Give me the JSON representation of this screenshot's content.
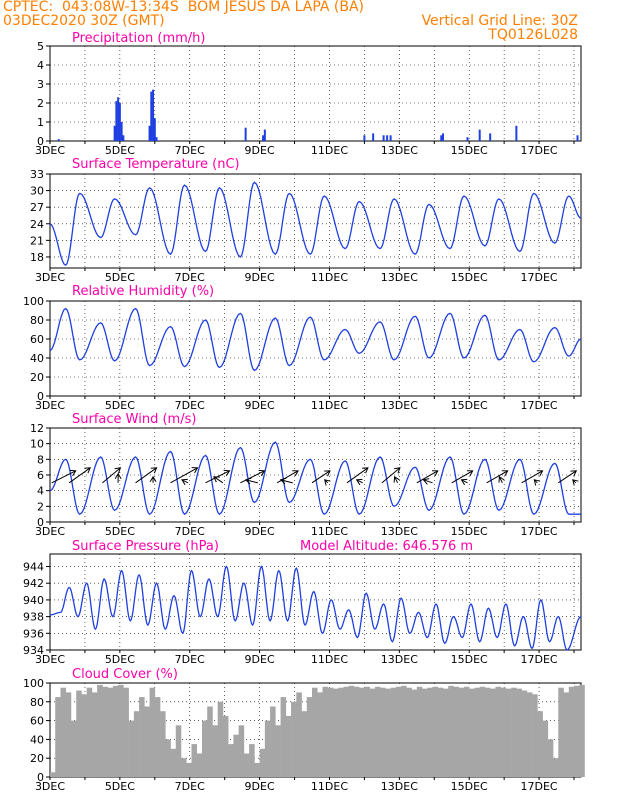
{
  "header": {
    "line1_left": "CPTEC:  043:08W-13:34S  BOM JESUS DA LAPA (BA)",
    "line2_left": "03DEC2020 30Z (GMT)",
    "line2_right": "Vertical Grid Line: 30Z",
    "line3_right": "TQ0126L028"
  },
  "colors": {
    "header": "#ff7f00",
    "panel_title": "#ff00aa",
    "series": "#1f3fe0",
    "arrow": "#000000",
    "cloud": "#a6a6a6"
  },
  "x_axis": {
    "ticks": [
      "3DEC",
      "5DEC",
      "7DEC",
      "9DEC",
      "11DEC",
      "13DEC",
      "15DEC",
      "17DEC"
    ],
    "tick_days": [
      3,
      5,
      7,
      9,
      11,
      13,
      15,
      17
    ],
    "range_days": [
      3,
      18.2
    ]
  },
  "chart_data": [
    {
      "id": "precip",
      "type": "bar",
      "title": "Precipitation (mm/h)",
      "ylim": [
        0,
        5
      ],
      "yticks": [
        "0",
        "1",
        "2",
        "3",
        "4",
        "5"
      ],
      "x_days": [
        3.25,
        4.85,
        4.9,
        4.95,
        5.0,
        5.05,
        5.1,
        5.85,
        5.9,
        5.95,
        6.0,
        6.05,
        8.6,
        9.1,
        9.15,
        12.0,
        12.25,
        12.55,
        12.65,
        12.75,
        14.2,
        14.25,
        14.95,
        15.3,
        15.6,
        16.35,
        18.1
      ],
      "values": [
        0.1,
        0.8,
        2.1,
        2.3,
        2.0,
        1.0,
        0.3,
        0.8,
        2.6,
        2.7,
        1.2,
        0.2,
        0.7,
        0.3,
        0.6,
        0.3,
        0.4,
        0.3,
        0.3,
        0.3,
        0.3,
        0.4,
        0.2,
        0.6,
        0.4,
        0.8,
        0.3
      ]
    },
    {
      "id": "temp",
      "type": "line",
      "title": "Surface Temperature (nC)",
      "ylim": [
        16,
        33
      ],
      "yticks": [
        "18",
        "21",
        "24",
        "27",
        "30",
        "33"
      ],
      "days_min": [
        3.45,
        4.45,
        5.45,
        6.45,
        7.45,
        8.45,
        9.45,
        10.45,
        11.45,
        12.45,
        13.45,
        14.45,
        15.45,
        16.45,
        17.45
      ],
      "min_values": [
        16.5,
        21.5,
        22.0,
        18.5,
        19.0,
        18.0,
        18.5,
        18.5,
        19.5,
        19.5,
        18.5,
        19.5,
        20.0,
        19.0,
        20.5
      ],
      "days_max": [
        3.85,
        4.85,
        5.85,
        6.85,
        7.85,
        8.85,
        9.85,
        10.85,
        11.85,
        12.85,
        13.85,
        14.85,
        15.85,
        16.85,
        17.85
      ],
      "max_values": [
        29.5,
        28.5,
        30.5,
        31.0,
        30.5,
        31.5,
        29.5,
        29.0,
        28.0,
        28.5,
        27.5,
        29.0,
        28.5,
        29.5,
        29.0
      ],
      "start": 24.0,
      "end": 25.0
    },
    {
      "id": "rh",
      "type": "line",
      "title": "Relative Humidity (%)",
      "ylim": [
        0,
        100
      ],
      "yticks": [
        "0",
        "20",
        "40",
        "60",
        "80",
        "100"
      ],
      "days_max": [
        3.45,
        4.45,
        5.45,
        6.45,
        7.45,
        8.45,
        9.45,
        10.45,
        11.45,
        12.45,
        13.45,
        14.45,
        15.45,
        16.45,
        17.45
      ],
      "max_values": [
        92,
        77,
        92,
        73,
        80,
        87,
        82,
        83,
        70,
        78,
        84,
        87,
        85,
        70,
        72
      ],
      "days_min": [
        3.85,
        4.85,
        5.85,
        6.85,
        7.85,
        8.85,
        9.85,
        10.85,
        11.85,
        12.85,
        13.85,
        14.85,
        15.85,
        16.85,
        17.85
      ],
      "min_values": [
        38,
        37,
        32,
        31,
        30,
        27,
        32,
        38,
        45,
        38,
        40,
        40,
        38,
        36,
        42
      ],
      "start": 48,
      "end": 60
    },
    {
      "id": "wind",
      "type": "line",
      "title": "Surface Wind (m/s)",
      "ylim": [
        0,
        12
      ],
      "yticks": [
        "0",
        "2",
        "4",
        "6",
        "8",
        "10",
        "12"
      ],
      "days_max": [
        3.45,
        4.45,
        5.45,
        6.45,
        7.45,
        8.45,
        9.45,
        10.45,
        11.45,
        12.45,
        13.45,
        14.45,
        15.45,
        16.45,
        17.45
      ],
      "max_values": [
        8.0,
        8.3,
        8.3,
        9.0,
        8.5,
        9.5,
        10.2,
        8.0,
        7.8,
        8.3,
        7.0,
        8.3,
        8.0,
        8.0,
        7.5
      ],
      "days_min": [
        3.85,
        4.85,
        5.85,
        6.85,
        7.85,
        8.85,
        9.85,
        10.85,
        11.85,
        12.85,
        13.85,
        14.85,
        15.85,
        16.85,
        17.85
      ],
      "min_values": [
        1.0,
        1.5,
        1.0,
        1.0,
        1.0,
        2.5,
        2.5,
        1.0,
        1.0,
        2.0,
        1.5,
        1.0,
        1.5,
        1.0,
        1.0
      ],
      "start": 4.0,
      "end": 1.0,
      "vectors": [
        {
          "day": 3.05,
          "u": 8,
          "v": 4
        },
        {
          "day": 3.55,
          "u": 7,
          "v": 5
        },
        {
          "day": 4.5,
          "u": 6,
          "v": 5
        },
        {
          "day": 4.95,
          "u": 0,
          "v": 3
        },
        {
          "day": 5.45,
          "u": 7,
          "v": 5
        },
        {
          "day": 5.95,
          "u": 0,
          "v": 2
        },
        {
          "day": 6.45,
          "u": 9,
          "v": 5
        },
        {
          "day": 6.95,
          "u": -2,
          "v": 1
        },
        {
          "day": 7.45,
          "u": 8,
          "v": 4
        },
        {
          "day": 7.95,
          "u": -3,
          "v": 2
        },
        {
          "day": 8.45,
          "u": 8,
          "v": 4
        },
        {
          "day": 8.95,
          "u": -4,
          "v": 1
        },
        {
          "day": 9.5,
          "u": 7,
          "v": 4
        },
        {
          "day": 9.95,
          "u": -4,
          "v": 1
        },
        {
          "day": 10.5,
          "u": 6,
          "v": 4
        },
        {
          "day": 10.95,
          "u": -1,
          "v": 1
        },
        {
          "day": 11.5,
          "u": 7,
          "v": 5
        },
        {
          "day": 11.95,
          "u": -2,
          "v": 1
        },
        {
          "day": 12.5,
          "u": 6,
          "v": 5
        },
        {
          "day": 12.95,
          "u": -1,
          "v": 2
        },
        {
          "day": 13.5,
          "u": 7,
          "v": 4
        },
        {
          "day": 13.95,
          "u": -3,
          "v": 1
        },
        {
          "day": 14.5,
          "u": 7,
          "v": 4
        },
        {
          "day": 14.95,
          "u": -2,
          "v": 1
        },
        {
          "day": 15.5,
          "u": 7,
          "v": 4
        },
        {
          "day": 15.95,
          "u": -1,
          "v": 2
        },
        {
          "day": 16.5,
          "u": 7,
          "v": 4
        },
        {
          "day": 16.95,
          "u": -1,
          "v": 1
        },
        {
          "day": 17.55,
          "u": 6,
          "v": 4
        },
        {
          "day": 18.05,
          "u": -1,
          "v": 1
        }
      ]
    },
    {
      "id": "pres",
      "type": "line",
      "title": "Surface Pressure (hPa)",
      "subtitle": "Model Altitude: 646.576 m",
      "ylim": [
        934,
        945.5
      ],
      "yticks": [
        "934",
        "936",
        "938",
        "940",
        "942",
        "944"
      ],
      "days_max": [
        3.55,
        4.05,
        4.55,
        5.05,
        5.55,
        6.05,
        6.55,
        7.05,
        7.55,
        8.05,
        8.55,
        9.05,
        9.55,
        10.05,
        10.55,
        11.05,
        11.55,
        12.05,
        12.55,
        13.05,
        13.55,
        14.05,
        14.55,
        15.05,
        15.55,
        16.05,
        16.55,
        17.05,
        17.55
      ],
      "max_values": [
        941.5,
        942.0,
        942.5,
        943.5,
        943.0,
        942.0,
        940.5,
        943.5,
        942.5,
        944.0,
        942.0,
        944.0,
        943.5,
        943.8,
        941.0,
        940.0,
        938.8,
        940.8,
        939.5,
        940.2,
        938.5,
        939.5,
        938.0,
        939.5,
        939.0,
        939.5,
        938.0,
        940.0,
        938.0
      ],
      "days_min": [
        3.3,
        3.8,
        4.3,
        4.8,
        5.3,
        5.8,
        6.3,
        6.8,
        7.3,
        7.8,
        8.3,
        8.8,
        9.3,
        9.8,
        10.3,
        10.8,
        11.3,
        11.8,
        12.3,
        12.8,
        13.3,
        13.8,
        14.3,
        14.8,
        15.3,
        15.8,
        16.3,
        16.8,
        17.3,
        17.8
      ],
      "min_values": [
        938.5,
        938.0,
        936.5,
        938.0,
        937.5,
        937.0,
        936.5,
        936.0,
        938.0,
        938.0,
        937.5,
        937.0,
        937.5,
        937.5,
        937.0,
        936.0,
        936.5,
        935.5,
        936.5,
        935.0,
        936.0,
        935.5,
        934.8,
        935.5,
        935.0,
        935.5,
        934.5,
        934.2,
        935.0,
        934.0
      ],
      "start": 938.2,
      "end": 938.0
    },
    {
      "id": "cloud",
      "type": "area",
      "title": "Cloud Cover (%)",
      "ylim": [
        0,
        100
      ],
      "yticks": [
        "0",
        "20",
        "40",
        "60",
        "80",
        "100"
      ],
      "x_days": [
        3.0,
        3.15,
        3.3,
        3.45,
        3.6,
        3.75,
        3.9,
        4.05,
        4.2,
        4.35,
        4.5,
        4.65,
        4.8,
        4.95,
        5.1,
        5.25,
        5.4,
        5.55,
        5.7,
        5.85,
        6.0,
        6.15,
        6.3,
        6.45,
        6.6,
        6.75,
        6.9,
        7.05,
        7.2,
        7.35,
        7.5,
        7.65,
        7.8,
        7.95,
        8.1,
        8.25,
        8.4,
        8.55,
        8.7,
        8.85,
        9.0,
        9.15,
        9.3,
        9.45,
        9.6,
        9.75,
        9.9,
        10.05,
        10.2,
        10.35,
        10.5,
        10.65,
        10.8,
        10.95,
        11.1,
        11.25,
        11.4,
        11.55,
        11.7,
        11.85,
        12.0,
        12.15,
        12.3,
        12.45,
        12.6,
        12.75,
        12.9,
        13.05,
        13.2,
        13.35,
        13.5,
        13.65,
        13.8,
        13.95,
        14.1,
        14.25,
        14.4,
        14.55,
        14.7,
        14.85,
        15.0,
        15.15,
        15.3,
        15.45,
        15.6,
        15.75,
        15.9,
        16.05,
        16.2,
        16.35,
        16.5,
        16.65,
        16.8,
        16.95,
        17.1,
        17.25,
        17.4,
        17.55,
        17.7,
        17.85,
        18.0,
        18.15
      ],
      "values": [
        5,
        85,
        95,
        90,
        60,
        92,
        88,
        95,
        90,
        98,
        96,
        95,
        97,
        98,
        95,
        60,
        70,
        85,
        75,
        95,
        85,
        70,
        40,
        30,
        55,
        20,
        15,
        35,
        25,
        60,
        75,
        55,
        80,
        65,
        35,
        45,
        55,
        25,
        35,
        15,
        30,
        60,
        75,
        55,
        85,
        65,
        80,
        90,
        70,
        85,
        95,
        90,
        96,
        95,
        94,
        95,
        96,
        97,
        96,
        95,
        96,
        94,
        96,
        95,
        94,
        95,
        96,
        97,
        95,
        93,
        96,
        94,
        95,
        96,
        95,
        94,
        97,
        96,
        95,
        96,
        94,
        95,
        96,
        95,
        94,
        96,
        95,
        94,
        95,
        94,
        92,
        90,
        88,
        70,
        60,
        40,
        20,
        95,
        90,
        96,
        97,
        98
      ]
    }
  ]
}
